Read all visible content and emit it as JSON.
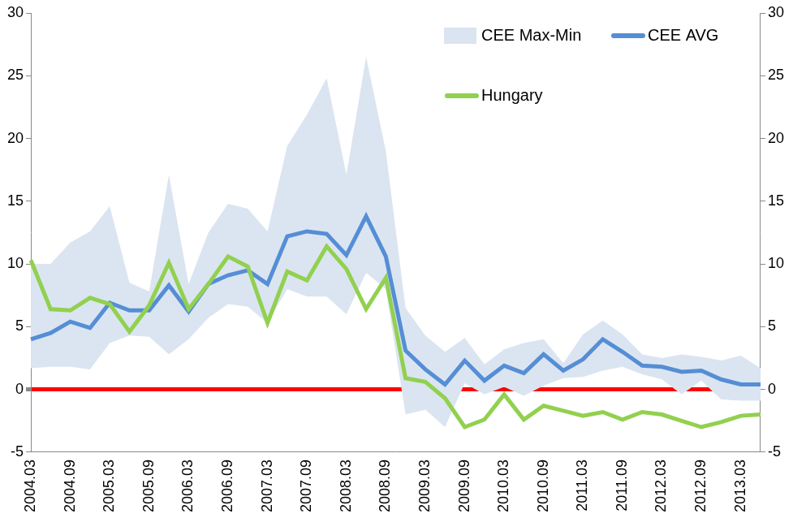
{
  "chart_data": {
    "type": "line",
    "categories": [
      "2004.03",
      null,
      "2004.09",
      null,
      "2005.03",
      null,
      "2005.09",
      null,
      "2006.03",
      null,
      "2006.09",
      null,
      "2007.03",
      null,
      "2007.09",
      null,
      "2008.03",
      null,
      "2008.09",
      null,
      "2009.03",
      null,
      "2009.09",
      null,
      "2010.03",
      null,
      "2010.09",
      null,
      "2011.03",
      null,
      "2011.09",
      null,
      "2012.03",
      null,
      "2012.09",
      null,
      "2013.03",
      null
    ],
    "series": [
      {
        "name": "CEE Max-Min",
        "type": "area",
        "color": "#dbe5f1",
        "values": [
          10.0,
          10.0,
          11.7,
          12.6,
          14.6,
          8.5,
          7.8,
          17.1,
          8.4,
          12.5,
          14.8,
          14.4,
          12.6,
          19.4,
          21.9,
          24.8,
          17.1,
          26.5,
          19.0,
          6.5,
          4.3,
          3.0,
          4.1,
          2.0,
          3.2,
          3.7,
          4.0,
          2.1,
          4.4,
          5.5,
          4.4,
          2.8,
          2.5,
          2.8,
          2.6,
          2.3,
          2.7,
          1.7
        ],
        "low": [
          1.7,
          1.8,
          1.8,
          1.6,
          3.7,
          4.3,
          4.2,
          2.8,
          4.0,
          5.7,
          6.8,
          6.6,
          5.3,
          8.0,
          7.4,
          7.4,
          6.0,
          9.3,
          8.0,
          -2.0,
          -1.6,
          -3.0,
          0.5,
          -0.4,
          0.2,
          -0.5,
          0.3,
          0.9,
          1.0,
          1.5,
          1.8,
          1.2,
          0.8,
          -0.4,
          0.7,
          -0.8,
          -0.9,
          -0.9
        ]
      },
      {
        "name": "CEE AVG",
        "type": "line",
        "color": "#558ed5",
        "values": [
          4.0,
          4.5,
          5.4,
          4.9,
          6.9,
          6.3,
          6.3,
          8.3,
          6.2,
          8.4,
          9.1,
          9.5,
          8.4,
          12.2,
          12.6,
          12.4,
          10.7,
          13.8,
          10.6,
          3.1,
          1.6,
          0.4,
          2.3,
          0.7,
          1.9,
          1.3,
          2.8,
          1.5,
          2.4,
          4.0,
          3.0,
          1.9,
          1.8,
          1.4,
          1.5,
          0.8,
          0.4,
          0.4
        ]
      },
      {
        "name": "Hungary",
        "type": "line",
        "color": "#92d050",
        "values": [
          10.3,
          6.4,
          6.3,
          7.3,
          6.8,
          4.6,
          6.7,
          10.1,
          6.4,
          8.4,
          10.6,
          9.8,
          5.3,
          9.4,
          8.7,
          11.4,
          9.6,
          6.4,
          8.9,
          0.9,
          0.6,
          -0.7,
          -3.0,
          -2.4,
          -0.4,
          -2.4,
          -1.3,
          -1.7,
          -2.1,
          -1.8,
          -2.4,
          -1.8,
          -2.0,
          -2.5,
          -3.0,
          -2.6,
          -2.1,
          -2.0
        ]
      }
    ],
    "ylim": [
      -5,
      30
    ],
    "yticks": [
      -5,
      0,
      5,
      10,
      15,
      20,
      25,
      30
    ],
    "y2lim": [
      -5,
      30
    ],
    "y2ticks": [
      -5,
      0,
      5,
      10,
      15,
      20,
      25,
      30
    ],
    "grid": false,
    "legend": "upper right"
  }
}
